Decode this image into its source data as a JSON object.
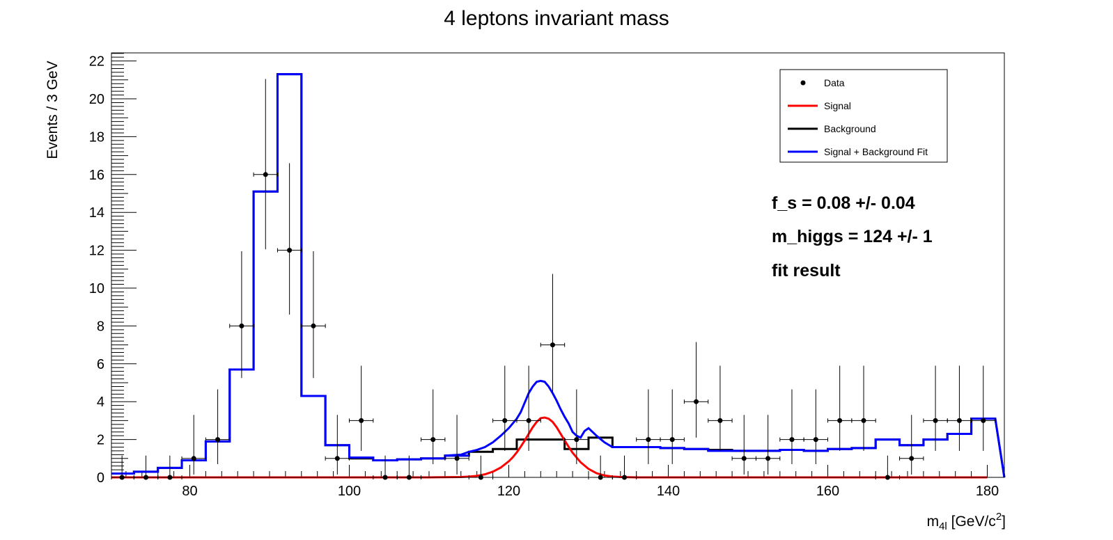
{
  "chart_data": {
    "type": "line",
    "title": "4 leptons invariant mass",
    "xlabel": {
      "main": "m",
      "sub": "4l",
      "unit_pre": " [GeV/c",
      "sup": "2",
      "unit_post": "]"
    },
    "ylabel": "Events / 3 GeV",
    "xlim": [
      70,
      180
    ],
    "ylim": [
      0,
      22.5
    ],
    "x_major_ticks": [
      80,
      100,
      120,
      140,
      160,
      180
    ],
    "y_major_ticks": [
      0,
      2,
      4,
      6,
      8,
      10,
      12,
      14,
      16,
      18,
      20,
      22
    ],
    "grid": false,
    "legend_position": "top-right",
    "legend": [
      {
        "label": "Data",
        "style": "marker",
        "color": "#000000"
      },
      {
        "label": "Signal",
        "style": "line",
        "color": "#ff0000"
      },
      {
        "label": "Background",
        "style": "line",
        "color": "#000000"
      },
      {
        "label": "Signal + Background Fit",
        "style": "line",
        "color": "#0000ff"
      }
    ],
    "annotations": [
      "f_s =  0.08 +/- 0.04",
      "m_higgs =  124 +/- 1",
      "fit result"
    ],
    "bin_edges": [
      70,
      73,
      76,
      79,
      82,
      85,
      88,
      91,
      94,
      97,
      100,
      103,
      106,
      109,
      112,
      115,
      118,
      121,
      124,
      127,
      130,
      133,
      136,
      139,
      142,
      145,
      148,
      151,
      154,
      157,
      160,
      163,
      166,
      169,
      172,
      175,
      178,
      181
    ],
    "series": [
      {
        "name": "Data",
        "style": "points",
        "color": "#000000",
        "x": [
          71.5,
          74.5,
          77.5,
          80.5,
          83.5,
          86.5,
          89.5,
          92.5,
          95.5,
          98.5,
          101.5,
          104.5,
          107.5,
          110.5,
          113.5,
          116.5,
          119.5,
          122.5,
          125.5,
          128.5,
          131.5,
          134.5,
          137.5,
          140.5,
          143.5,
          146.5,
          149.5,
          152.5,
          155.5,
          158.5,
          161.5,
          164.5,
          167.5,
          170.5,
          173.5,
          176.5,
          179.5
        ],
        "y": [
          0,
          0,
          0,
          1,
          2,
          8,
          16,
          12,
          8,
          1,
          3,
          0,
          0,
          2,
          1,
          0,
          3,
          3,
          7,
          2,
          0,
          0,
          2,
          2,
          4,
          3,
          1,
          1,
          2,
          2,
          3,
          3,
          0,
          1,
          3,
          3,
          3
        ],
        "err_up": [
          1.15,
          1.15,
          1.15,
          2.3,
          2.65,
          3.95,
          5.05,
          4.6,
          3.95,
          2.3,
          2.9,
          1.15,
          1.15,
          2.65,
          2.3,
          1.15,
          2.9,
          2.9,
          3.75,
          2.65,
          1.15,
          1.15,
          2.65,
          2.65,
          3.15,
          2.9,
          2.3,
          2.3,
          2.65,
          2.65,
          2.9,
          2.9,
          1.15,
          2.3,
          2.9,
          2.9,
          2.9
        ],
        "err_down": [
          0,
          0,
          0,
          0.85,
          1.3,
          2.75,
          3.95,
          3.4,
          2.75,
          0.85,
          1.6,
          0,
          0,
          1.3,
          0.85,
          0,
          1.6,
          1.6,
          2.6,
          1.3,
          0,
          0,
          1.3,
          1.3,
          1.9,
          1.6,
          0.85,
          0.85,
          1.3,
          1.3,
          1.6,
          1.6,
          0,
          0.85,
          1.6,
          1.6,
          1.6
        ]
      },
      {
        "name": "Background",
        "style": "step",
        "color": "#000000",
        "values": [
          0.2,
          0.3,
          0.5,
          0.9,
          1.9,
          5.7,
          15.1,
          21.3,
          4.3,
          1.7,
          1.0,
          0.9,
          0.95,
          1.0,
          1.15,
          1.35,
          1.5,
          2.0,
          2.0,
          1.5,
          2.1,
          1.6,
          1.6,
          1.55,
          1.5,
          1.45,
          1.4,
          1.4,
          1.45,
          1.4,
          1.5,
          1.55,
          2.0,
          1.7,
          2.0,
          2.3,
          3.1
        ]
      },
      {
        "name": "Signal",
        "style": "curve",
        "color": "#ff0000",
        "x": [
          70,
          110,
          112,
          114,
          115,
          116,
          117,
          118,
          119,
          120,
          120.5,
          121,
          121.5,
          122,
          122.5,
          123,
          123.5,
          124,
          124.5,
          125,
          125.5,
          126,
          126.5,
          127,
          127.5,
          128,
          129,
          130,
          131,
          132,
          133,
          134,
          136,
          180
        ],
        "y": [
          0,
          0,
          0.01,
          0.02,
          0.04,
          0.08,
          0.16,
          0.3,
          0.52,
          0.85,
          1.06,
          1.32,
          1.62,
          1.95,
          2.3,
          2.65,
          2.93,
          3.13,
          3.16,
          3.1,
          2.93,
          2.65,
          2.3,
          1.95,
          1.62,
          1.3,
          0.8,
          0.45,
          0.22,
          0.1,
          0.04,
          0.02,
          0,
          0
        ]
      },
      {
        "name": "Signal + Background Fit",
        "style": "step+curve",
        "color": "#0000ff",
        "step_values": [
          0.2,
          0.3,
          0.5,
          0.9,
          1.9,
          5.7,
          15.1,
          21.3,
          4.3,
          1.7,
          1.05,
          0.9,
          0.95,
          1.0,
          1.15,
          null,
          null,
          null,
          null,
          null,
          null,
          1.6,
          1.6,
          1.55,
          1.5,
          1.4,
          1.4,
          1.4,
          1.45,
          1.4,
          1.5,
          1.55,
          2.0,
          1.7,
          2.0,
          2.3,
          3.1
        ],
        "curve_x": [
          112,
          114,
          115,
          116,
          117,
          118,
          119,
          120,
          121,
          121.5,
          122,
          122.5,
          123,
          123.5,
          124,
          124.5,
          125,
          125.5,
          126,
          126.5,
          127,
          127.5,
          128,
          128.5,
          129,
          129.5,
          130,
          130.5,
          131,
          132,
          133
        ],
        "curve_y": [
          1.15,
          1.2,
          1.35,
          1.45,
          1.6,
          1.85,
          2.2,
          2.6,
          3.1,
          3.45,
          3.95,
          4.45,
          4.8,
          5.05,
          5.1,
          5.05,
          4.8,
          4.45,
          4.05,
          3.6,
          3.2,
          2.85,
          2.4,
          2.2,
          2.1,
          2.45,
          2.6,
          2.4,
          2.2,
          1.85,
          1.6
        ]
      }
    ]
  }
}
